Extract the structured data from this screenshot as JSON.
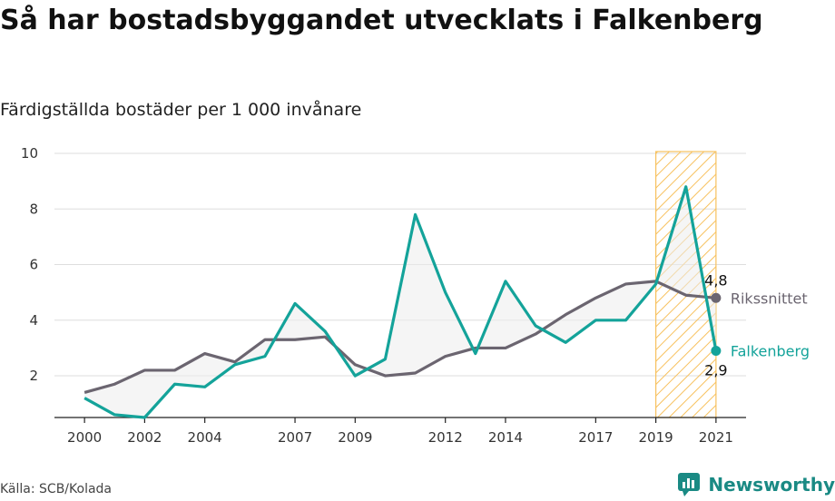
{
  "title": "Så har bostadsbyggandet utvecklats i Falkenberg",
  "subtitle": "Färdigställda bostäder per 1 000 invånare",
  "source": "Källa: SCB/Kolada",
  "brand": {
    "name": "Newsworthy",
    "icon": "newsworthy-logo-icon",
    "color": "#1a8a84"
  },
  "chart_data": {
    "type": "line",
    "x": [
      2000,
      2001,
      2002,
      2003,
      2004,
      2005,
      2006,
      2007,
      2008,
      2009,
      2010,
      2011,
      2012,
      2013,
      2014,
      2015,
      2016,
      2017,
      2018,
      2019,
      2020,
      2021
    ],
    "xticks": [
      2000,
      2002,
      2004,
      2007,
      2009,
      2012,
      2014,
      2017,
      2019,
      2021
    ],
    "yticks": [
      2,
      4,
      6,
      8,
      10
    ],
    "ylim": [
      0.5,
      10
    ],
    "xlim": [
      1999,
      2022
    ],
    "grid": true,
    "highlight_range": [
      2019.5,
      2021
    ],
    "series": [
      {
        "name": "Rikssnittet",
        "color": "#6b6570",
        "values": [
          1.4,
          1.7,
          2.2,
          2.2,
          2.8,
          2.5,
          3.3,
          3.3,
          3.4,
          2.4,
          2.0,
          2.1,
          2.7,
          3.0,
          3.0,
          3.5,
          4.2,
          4.8,
          5.3,
          5.4,
          4.9,
          4.8
        ],
        "end_label": "4,8"
      },
      {
        "name": "Falkenberg",
        "color": "#14a39a",
        "values": [
          1.2,
          0.6,
          0.5,
          1.7,
          1.6,
          2.4,
          2.7,
          4.6,
          3.6,
          2.0,
          2.6,
          7.8,
          5.0,
          2.8,
          5.4,
          3.8,
          3.2,
          4.0,
          4.0,
          5.3,
          8.8,
          2.9
        ],
        "end_label": "2,9"
      }
    ]
  }
}
